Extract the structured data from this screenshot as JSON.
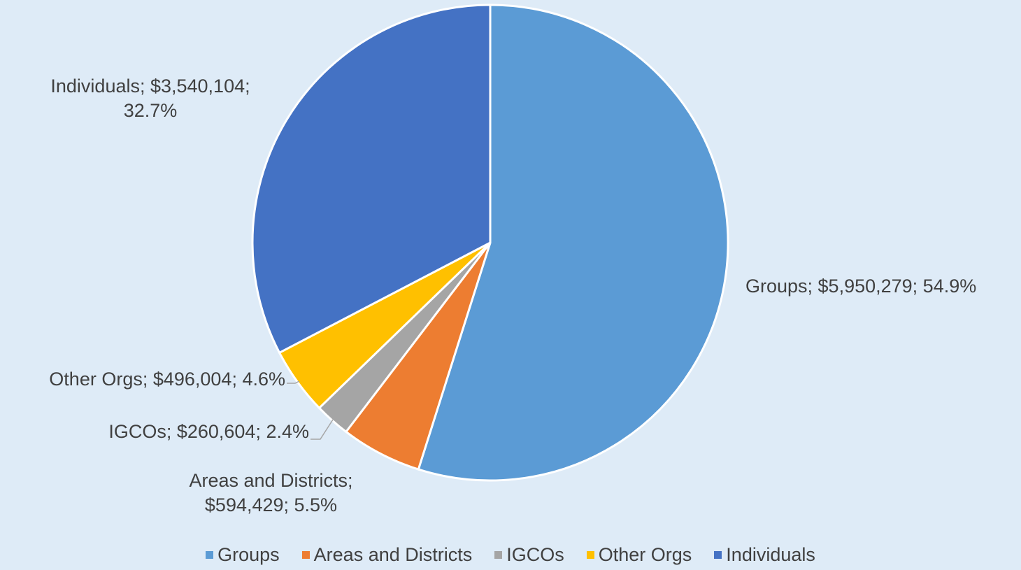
{
  "chart_data": {
    "type": "pie",
    "categories": [
      "Groups",
      "Areas and Districts",
      "IGCOs",
      "Other Orgs",
      "Individuals"
    ],
    "values": [
      5950279,
      594429,
      260604,
      496004,
      3540104
    ],
    "value_labels": [
      "Groups; $5,950,279; 54.9%",
      "Areas and Districts; $594,429; 5.5%",
      "IGCOs; $260,604; 2.4%",
      "Other Orgs; $496,004; 4.6%",
      "Individuals; $3,540,104; 32.7%"
    ],
    "colors": [
      "#5b9bd5",
      "#ed7d31",
      "#a5a5a5",
      "#ffc000",
      "#4472c4"
    ],
    "legend": "bottom"
  }
}
